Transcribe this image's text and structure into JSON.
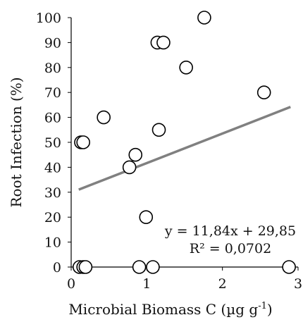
{
  "chart_data": {
    "type": "scatter",
    "xlabel": "Microbial Biomass C (µg g⁻¹)",
    "ylabel": "Root Infection (%)",
    "xlim": [
      0,
      3
    ],
    "ylim": [
      0,
      100
    ],
    "x_ticks": [
      "0",
      "1",
      "2",
      "3"
    ],
    "y_ticks": [
      "0",
      "10",
      "20",
      "30",
      "40",
      "50",
      "60",
      "70",
      "80",
      "90",
      "100"
    ],
    "grid": false,
    "marker": "open-circle",
    "series": [
      {
        "points": [
          {
            "x": 0.11,
            "y": 0
          },
          {
            "x": 0.16,
            "y": 0
          },
          {
            "x": 0.19,
            "y": 0
          },
          {
            "x": 0.9,
            "y": 0
          },
          {
            "x": 1.08,
            "y": 0
          },
          {
            "x": 2.88,
            "y": 0
          },
          {
            "x": 0.99,
            "y": 20
          },
          {
            "x": 0.77,
            "y": 40
          },
          {
            "x": 0.85,
            "y": 45
          },
          {
            "x": 0.13,
            "y": 50
          },
          {
            "x": 0.16,
            "y": 50
          },
          {
            "x": 1.16,
            "y": 55
          },
          {
            "x": 0.43,
            "y": 60
          },
          {
            "x": 2.55,
            "y": 70
          },
          {
            "x": 1.52,
            "y": 80
          },
          {
            "x": 1.14,
            "y": 90
          },
          {
            "x": 1.22,
            "y": 90
          },
          {
            "x": 1.76,
            "y": 100
          }
        ]
      }
    ],
    "trendline": {
      "slope": 11.84,
      "intercept": 29.85,
      "x_range": [
        0.1,
        2.9
      ],
      "color": "#808080"
    },
    "annotations": {
      "equation": "y = 11,84x + 29,85",
      "r_squared": "R² = 0,0702"
    }
  }
}
